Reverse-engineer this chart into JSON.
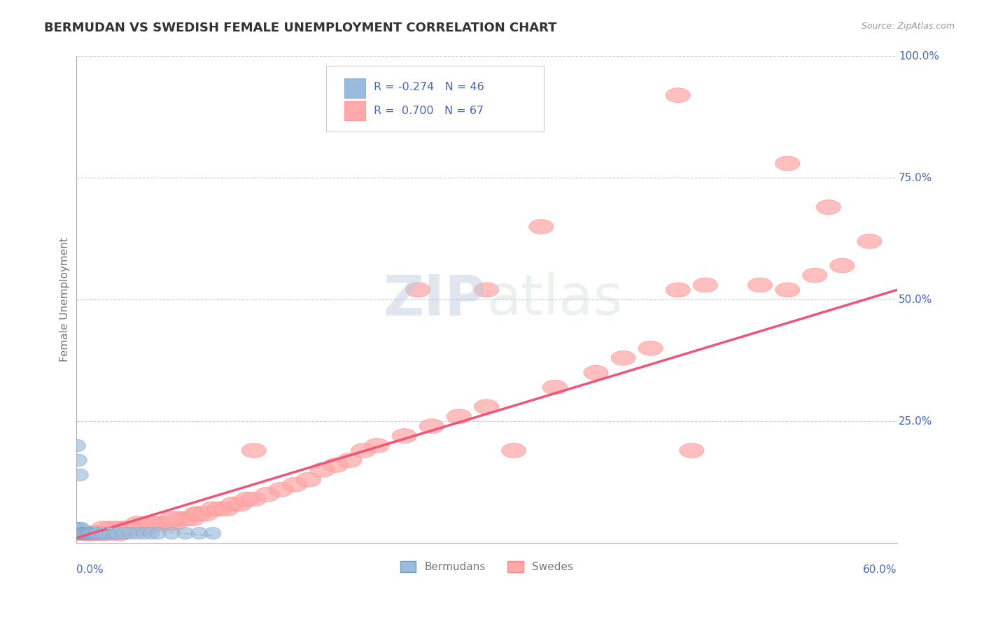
{
  "title": "BERMUDAN VS SWEDISH FEMALE UNEMPLOYMENT CORRELATION CHART",
  "source_text": "Source: ZipAtlas.com",
  "ylabel": "Female Unemployment",
  "watermark": "ZIPatlas",
  "xlim": [
    0.0,
    0.6
  ],
  "ylim": [
    0.0,
    1.0
  ],
  "blue_color": "#99BBDD",
  "pink_color": "#FFAAAA",
  "blue_edge": "#7799BB",
  "pink_edge": "#FF8888",
  "blue_line_color": "#AABBCC",
  "pink_line_color": "#EE5577",
  "grid_color": "#CCCCDD",
  "bg_color": "#FFFFFF",
  "axis_color": "#AAAAAA",
  "watermark_color": "#C8D8E8",
  "label_color": "#4466BB",
  "ylabel_color": "#777777",
  "source_color": "#999999",
  "title_color": "#333333",
  "legend_box_color": "#EEEEEE",
  "swedes_x": [
    0.005,
    0.01,
    0.015,
    0.018,
    0.022,
    0.025,
    0.028,
    0.03,
    0.033,
    0.036,
    0.04,
    0.043,
    0.046,
    0.05,
    0.053,
    0.056,
    0.06,
    0.065,
    0.068,
    0.072,
    0.075,
    0.08,
    0.085,
    0.088,
    0.09,
    0.095,
    0.1,
    0.105,
    0.11,
    0.115,
    0.12,
    0.125,
    0.13,
    0.14,
    0.15,
    0.16,
    0.17,
    0.18,
    0.19,
    0.2,
    0.21,
    0.22,
    0.24,
    0.26,
    0.28,
    0.3,
    0.35,
    0.38,
    0.4,
    0.42,
    0.44,
    0.46,
    0.5,
    0.54,
    0.56,
    0.003,
    0.008,
    0.012,
    0.02,
    0.035,
    0.045,
    0.055,
    0.07,
    0.13,
    0.25,
    0.32,
    0.45
  ],
  "swedes_y": [
    0.02,
    0.02,
    0.02,
    0.02,
    0.02,
    0.03,
    0.02,
    0.03,
    0.02,
    0.03,
    0.03,
    0.03,
    0.03,
    0.03,
    0.04,
    0.04,
    0.04,
    0.04,
    0.04,
    0.04,
    0.05,
    0.05,
    0.05,
    0.06,
    0.06,
    0.06,
    0.07,
    0.07,
    0.07,
    0.08,
    0.08,
    0.09,
    0.09,
    0.1,
    0.11,
    0.12,
    0.13,
    0.15,
    0.16,
    0.17,
    0.19,
    0.2,
    0.22,
    0.24,
    0.26,
    0.28,
    0.32,
    0.35,
    0.38,
    0.4,
    0.52,
    0.53,
    0.53,
    0.55,
    0.57,
    0.02,
    0.02,
    0.02,
    0.03,
    0.03,
    0.04,
    0.04,
    0.05,
    0.19,
    0.52,
    0.19,
    0.19
  ],
  "swedes_x_outliers": [
    0.44,
    0.52,
    0.55,
    0.58,
    0.52,
    0.3,
    0.34
  ],
  "swedes_y_outliers": [
    0.92,
    0.78,
    0.69,
    0.62,
    0.52,
    0.52,
    0.65
  ],
  "bermudans_x": [
    0.001,
    0.001,
    0.001,
    0.002,
    0.002,
    0.002,
    0.003,
    0.003,
    0.003,
    0.004,
    0.004,
    0.005,
    0.005,
    0.006,
    0.006,
    0.007,
    0.007,
    0.008,
    0.009,
    0.01,
    0.01,
    0.011,
    0.012,
    0.013,
    0.014,
    0.015,
    0.016,
    0.018,
    0.02,
    0.022,
    0.025,
    0.028,
    0.03,
    0.035,
    0.04,
    0.045,
    0.05,
    0.055,
    0.06,
    0.07,
    0.08,
    0.09,
    0.1,
    0.001,
    0.002,
    0.003
  ],
  "bermudans_y": [
    0.02,
    0.03,
    0.02,
    0.02,
    0.03,
    0.02,
    0.02,
    0.03,
    0.02,
    0.02,
    0.03,
    0.02,
    0.02,
    0.02,
    0.02,
    0.02,
    0.02,
    0.02,
    0.02,
    0.02,
    0.02,
    0.02,
    0.02,
    0.02,
    0.02,
    0.02,
    0.02,
    0.02,
    0.02,
    0.02,
    0.02,
    0.02,
    0.02,
    0.02,
    0.02,
    0.02,
    0.02,
    0.02,
    0.02,
    0.02,
    0.02,
    0.02,
    0.02,
    0.2,
    0.17,
    0.14
  ],
  "pink_line_x": [
    0.0,
    0.6
  ],
  "pink_line_y": [
    0.01,
    0.52
  ],
  "blue_line_x": [
    0.0,
    0.1
  ],
  "blue_line_y": [
    0.035,
    0.015
  ]
}
